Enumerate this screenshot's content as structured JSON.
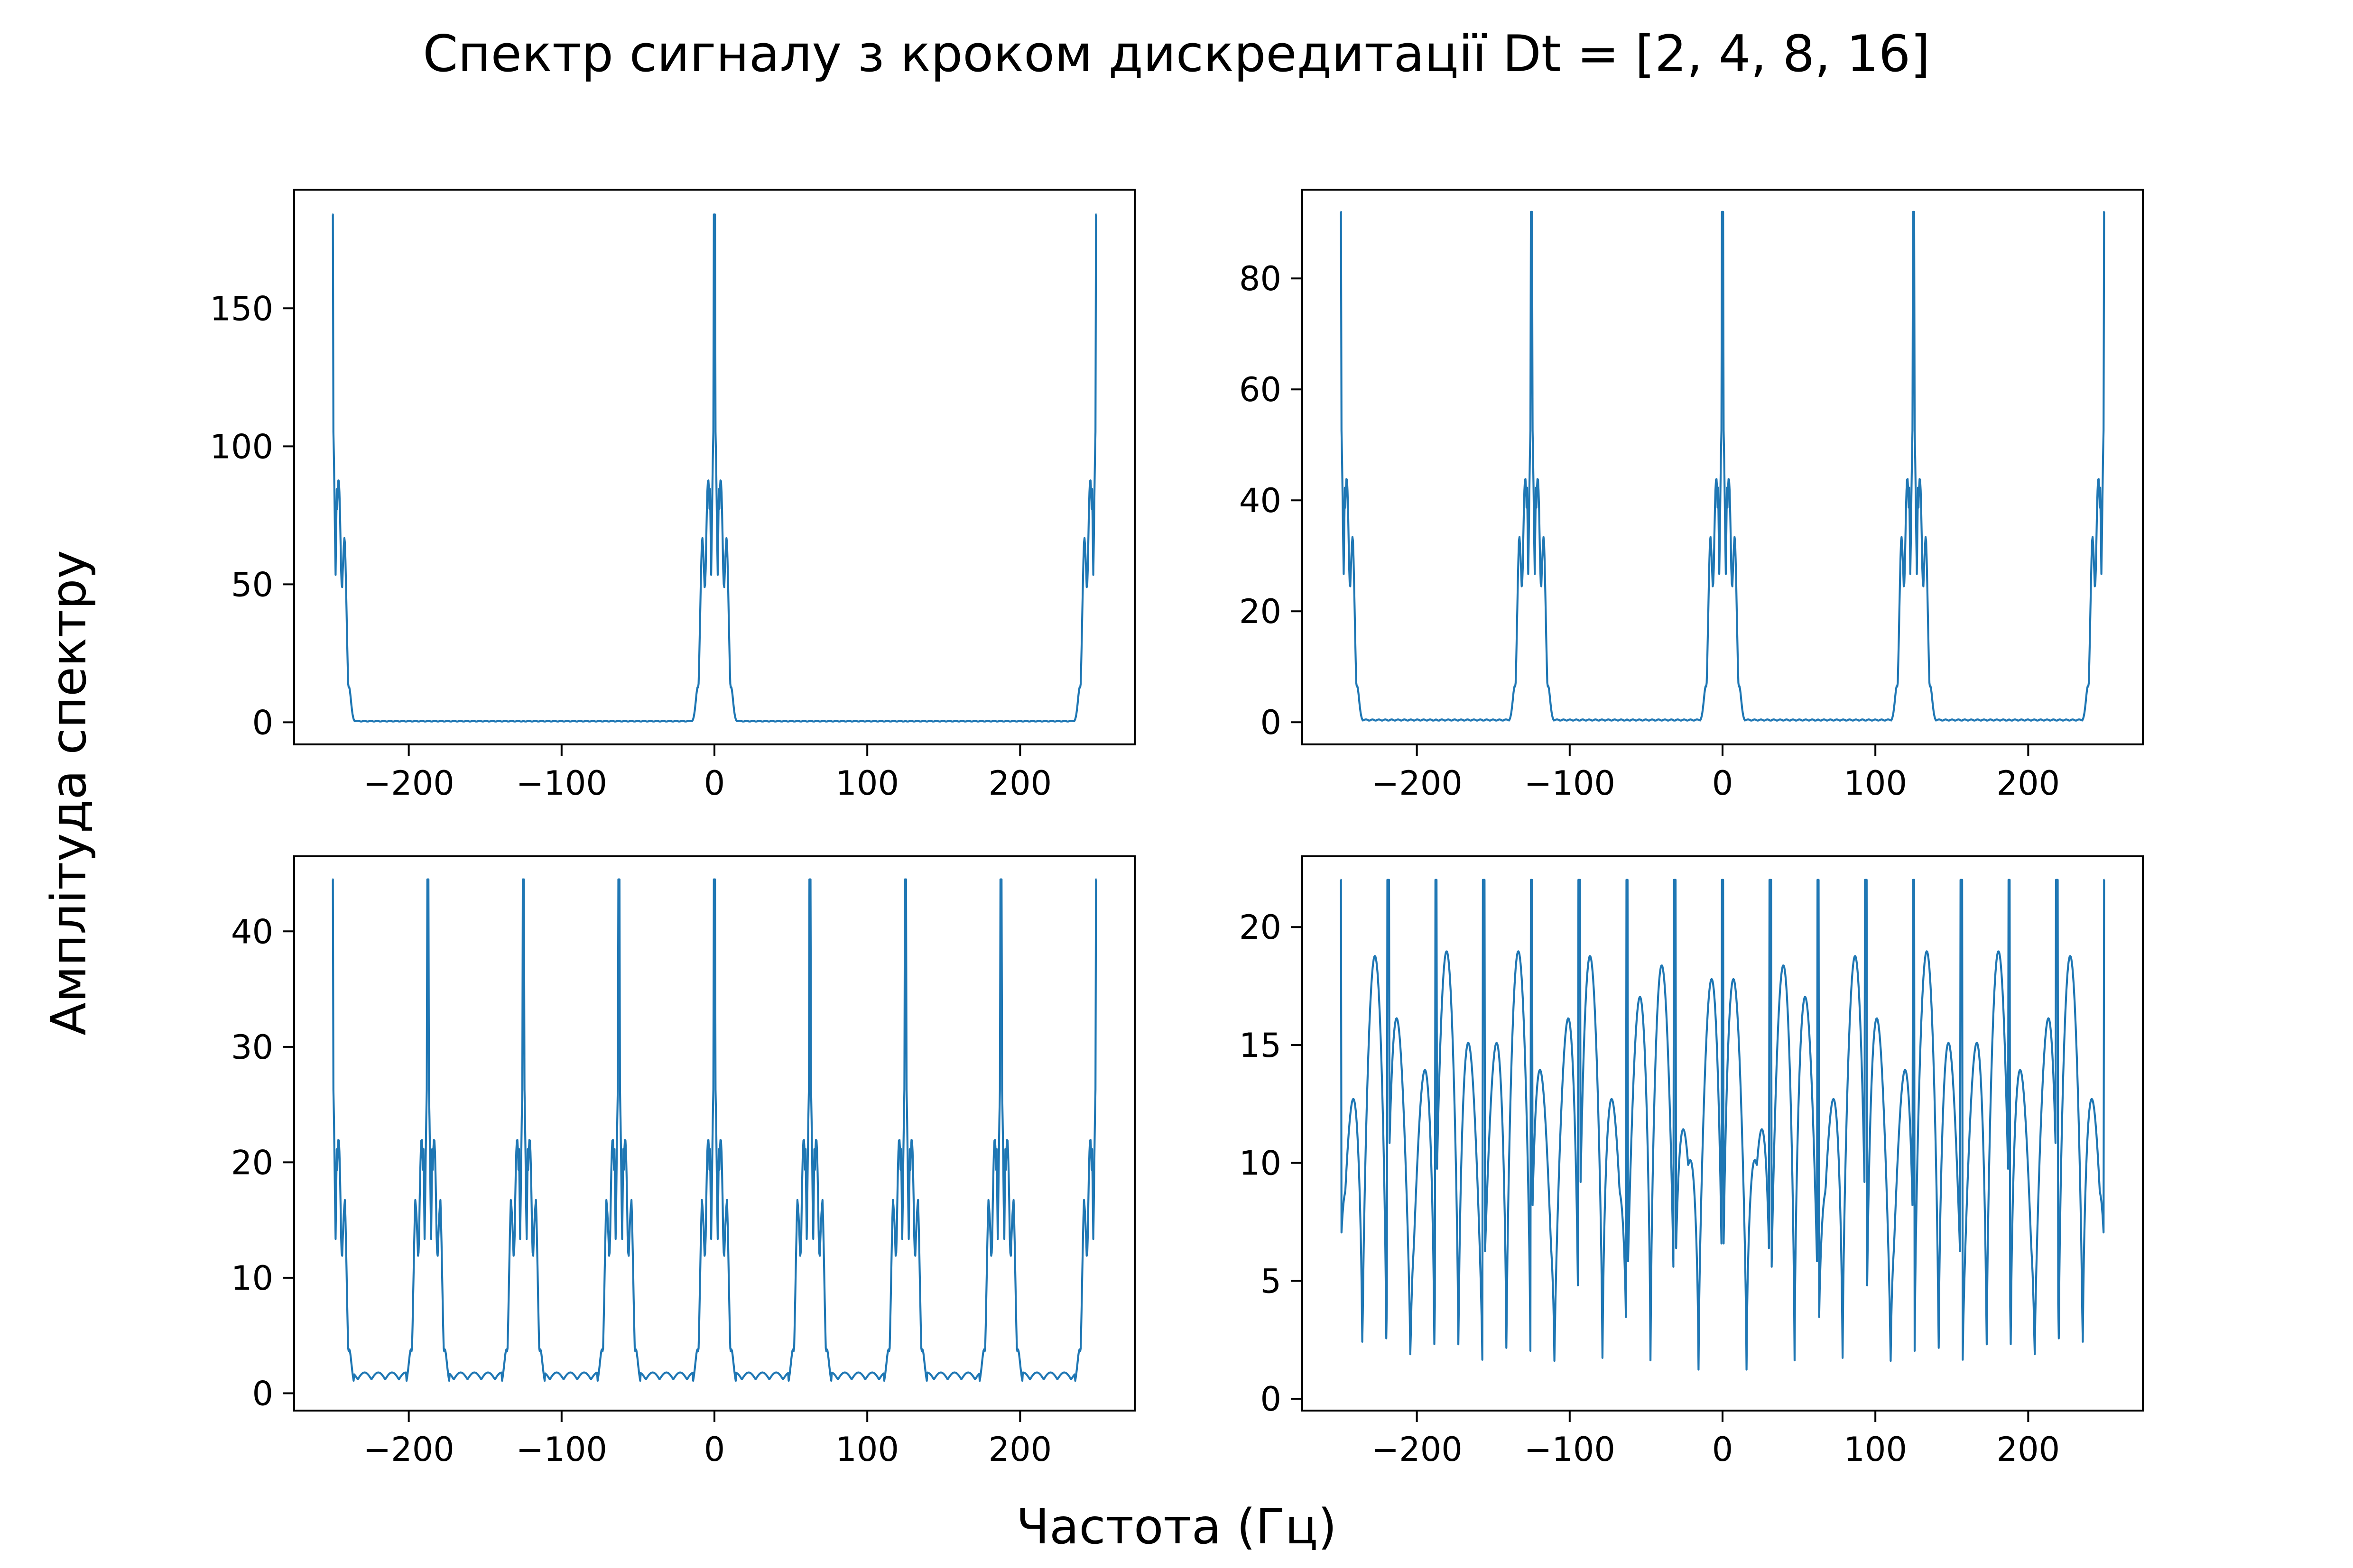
{
  "figure": {
    "title": "Спектр сигналу з кроком дискредитації Dt = [2, 4, 8, 16]",
    "xlabel": "Частота (Гц)",
    "ylabel": "Амплітуда спектру",
    "line_color": "#1f77b4"
  },
  "chart_data": [
    {
      "type": "line",
      "dt": 2,
      "xlim": [
        -275,
        275
      ],
      "ylim": [
        -8,
        193
      ],
      "xticks": [
        -200,
        -100,
        0,
        100,
        200
      ],
      "xtick_labels": [
        "−200",
        "−100",
        "0",
        "100",
        "200"
      ],
      "yticks": [
        0,
        50,
        100,
        150
      ],
      "ytick_labels": [
        "0",
        "50",
        "100",
        "150"
      ],
      "peak_period": 250,
      "peak_height": 184,
      "first_sidelobe": 114,
      "second_sidelobe": 72,
      "floor": 0.5,
      "x_range": [
        -250,
        250
      ]
    },
    {
      "type": "line",
      "dt": 4,
      "xlim": [
        -275,
        275
      ],
      "ylim": [
        -4,
        96
      ],
      "xticks": [
        -200,
        -100,
        0,
        100,
        200
      ],
      "xtick_labels": [
        "−200",
        "−100",
        "0",
        "100",
        "200"
      ],
      "yticks": [
        0,
        20,
        40,
        60,
        80
      ],
      "ytick_labels": [
        "0",
        "20",
        "40",
        "60",
        "80"
      ],
      "peak_period": 125,
      "peak_height": 92,
      "first_sidelobe": 57,
      "second_sidelobe": 36,
      "floor": 0.5,
      "x_range": [
        -250,
        250
      ]
    },
    {
      "type": "line",
      "dt": 8,
      "xlim": [
        -275,
        275
      ],
      "ylim": [
        -1.5,
        46.5
      ],
      "xticks": [
        -200,
        -100,
        0,
        100,
        200
      ],
      "xtick_labels": [
        "−200",
        "−100",
        "0",
        "100",
        "200"
      ],
      "yticks": [
        0,
        10,
        20,
        30,
        40
      ],
      "ytick_labels": [
        "0",
        "10",
        "20",
        "30",
        "40"
      ],
      "peak_period": 62.5,
      "peak_height": 44.5,
      "first_sidelobe": 28.5,
      "second_sidelobe": 17.5,
      "floor": 1.2,
      "x_range": [
        -250,
        250
      ]
    },
    {
      "type": "line",
      "dt": 16,
      "xlim": [
        -275,
        275
      ],
      "ylim": [
        -0.5,
        23
      ],
      "xticks": [
        -200,
        -100,
        0,
        100,
        200
      ],
      "xtick_labels": [
        "−200",
        "−100",
        "0",
        "100",
        "200"
      ],
      "yticks": [
        0,
        5,
        10,
        15,
        20
      ],
      "ytick_labels": [
        "0",
        "5",
        "10",
        "15",
        "20"
      ],
      "peak_period": 31.25,
      "peak_height": 22,
      "first_sidelobe": 19,
      "second_sidelobe": 13.5,
      "floor": 1,
      "x_range": [
        -250,
        250
      ]
    }
  ]
}
